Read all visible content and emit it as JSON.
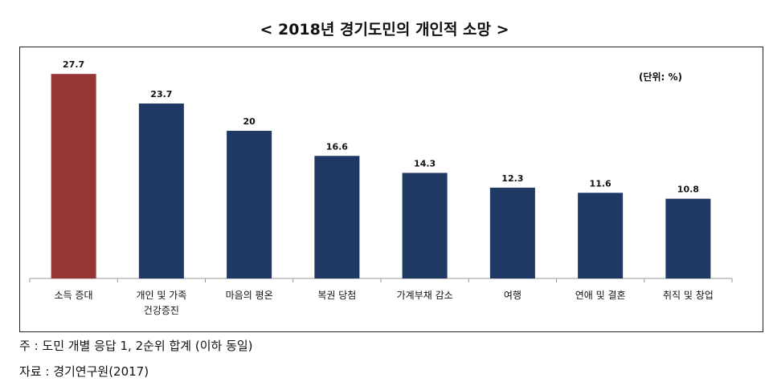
{
  "title": "< 2018년 경기도민의 개인적 소망 >",
  "unit_label": "(단위: %)",
  "notes": {
    "note": "주 : 도민 개별 응답 1, 2순위 합계 (이하 동일)",
    "source": "자료 : 경기연구원(2017)"
  },
  "colors": {
    "highlight": "#963634",
    "bar": "#1f3864"
  },
  "chart_data": {
    "type": "bar",
    "title": "< 2018년 경기도민의 개인적 소망 >",
    "unit": "(단위: %)",
    "categories": [
      [
        "소득 증대"
      ],
      [
        "개인 및 가족",
        "건강증진"
      ],
      [
        "마음의 평온"
      ],
      [
        "복권 당첨"
      ],
      [
        "가계부채 감소"
      ],
      [
        "여행"
      ],
      [
        "연애 및 결혼"
      ],
      [
        "취직 및 창업"
      ]
    ],
    "values": [
      27.7,
      23.7,
      20,
      16.6,
      14.3,
      12.3,
      11.6,
      10.8
    ],
    "value_labels": [
      "27.7",
      "23.7",
      "20",
      "16.6",
      "14.3",
      "12.3",
      "11.6",
      "10.8"
    ],
    "highlight_index": 0,
    "ylim": [
      0,
      30
    ],
    "grid": false,
    "legend": "none"
  }
}
